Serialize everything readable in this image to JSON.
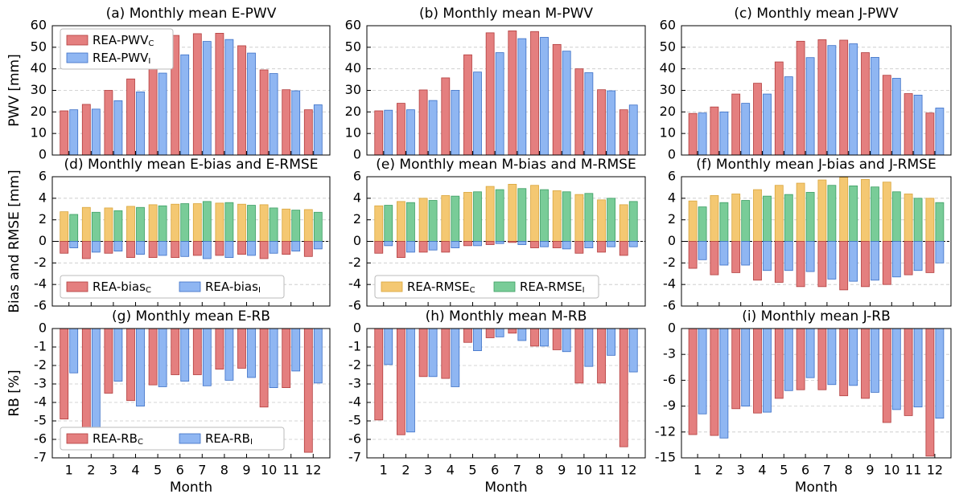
{
  "chart_data": [
    {
      "type": "bar",
      "title": "(a) Monthly mean E-PWV",
      "ylabel": "PWV [mm]",
      "ylim": [
        0,
        60
      ],
      "yticks": [
        0,
        10,
        20,
        30,
        40,
        50,
        60
      ],
      "grid": true,
      "legend": "upper left",
      "legend_ncol": 1,
      "series": [
        {
          "name": "REA-PWV",
          "name_sub": "C",
          "color": "#e47f7f",
          "edgecolor": "#b23c3c",
          "in_legend": true,
          "values": [
            20.5,
            23.5,
            30,
            35.3,
            45.3,
            55.5,
            56.3,
            56.5,
            50.7,
            39.5,
            30.3,
            21
          ]
        },
        {
          "name": "REA-PWV",
          "name_sub": "I",
          "color": "#8fb6f2",
          "edgecolor": "#3b6fc6",
          "in_legend": true,
          "values": [
            21,
            21.3,
            25.2,
            29.3,
            38,
            46.5,
            52.7,
            53.6,
            47.3,
            37.8,
            29.8,
            23.3
          ]
        }
      ]
    },
    {
      "type": "bar",
      "title": "(b) Monthly mean M-PWV",
      "ylim": [
        0,
        60
      ],
      "yticks": [
        0,
        10,
        20,
        30,
        40,
        50,
        60
      ],
      "grid": true,
      "series": [
        {
          "name": "REA-PWV",
          "name_sub": "C",
          "color": "#e47f7f",
          "edgecolor": "#b23c3c",
          "values": [
            20.5,
            24,
            30.2,
            35.8,
            46.5,
            56.7,
            57.6,
            57.3,
            51.3,
            40,
            30.3,
            21
          ]
        },
        {
          "name": "REA-PWV",
          "name_sub": "I",
          "color": "#8fb6f2",
          "edgecolor": "#3b6fc6",
          "values": [
            20.8,
            21,
            25.3,
            30,
            38.5,
            47.5,
            54,
            54.6,
            48.2,
            38.2,
            29.8,
            23.2
          ]
        }
      ]
    },
    {
      "type": "bar",
      "title": "(c) Monthly mean J-PWV",
      "ylim": [
        0,
        60
      ],
      "yticks": [
        0,
        10,
        20,
        30,
        40,
        50,
        60
      ],
      "grid": true,
      "series": [
        {
          "name": "REA-PWV",
          "name_sub": "C",
          "color": "#e47f7f",
          "edgecolor": "#b23c3c",
          "values": [
            19.3,
            22.3,
            28.3,
            33.3,
            43.2,
            52.8,
            53.5,
            53.3,
            47.5,
            37,
            28.5,
            19.5
          ]
        },
        {
          "name": "REA-PWV",
          "name_sub": "I",
          "color": "#8fb6f2",
          "edgecolor": "#3b6fc6",
          "values": [
            19.5,
            20,
            24,
            28.3,
            36.3,
            45.2,
            50.8,
            51.6,
            45.3,
            35.6,
            27.8,
            21.8
          ]
        }
      ]
    },
    {
      "type": "bar",
      "title": "(d) Monthly mean E-bias and E-RMSE",
      "ylabel": "Bias and RMSE [mm]",
      "ylim": [
        -6,
        6
      ],
      "yticks": [
        -6,
        -4,
        -2,
        0,
        2,
        4,
        6
      ],
      "grid": true,
      "zero_line": true,
      "legend": "lower left",
      "legend_ncol": 2,
      "series": [
        {
          "name": "REA-RMSE",
          "name_sub": "C",
          "color": "#f4c872",
          "edgecolor": "#d9a53c",
          "values": [
            2.75,
            3.15,
            3.1,
            3.25,
            3.4,
            3.45,
            3.5,
            3.55,
            3.45,
            3.4,
            3.0,
            2.95
          ]
        },
        {
          "name": "REA-RMSE",
          "name_sub": "I",
          "color": "#79cc98",
          "edgecolor": "#3c9e63",
          "values": [
            2.5,
            2.7,
            2.85,
            3.15,
            3.3,
            3.5,
            3.7,
            3.6,
            3.35,
            3.1,
            2.9,
            2.7
          ]
        },
        {
          "name": "REA-bias",
          "name_sub": "C",
          "color": "#e47f7f",
          "edgecolor": "#b23c3c",
          "in_legend": true,
          "values": [
            -1.1,
            -1.6,
            -1.1,
            -1.5,
            -1.5,
            -1.5,
            -1.3,
            -1.3,
            -1.2,
            -1.6,
            -1.2,
            -1.4
          ]
        },
        {
          "name": "REA-bias",
          "name_sub": "I",
          "color": "#8fb6f2",
          "edgecolor": "#3b6fc6",
          "in_legend": true,
          "values": [
            -0.6,
            -1.0,
            -0.9,
            -1.2,
            -1.3,
            -1.4,
            -1.6,
            -1.5,
            -1.3,
            -1.1,
            -0.9,
            -0.7
          ]
        }
      ]
    },
    {
      "type": "bar",
      "title": "(e) Monthly mean M-bias and M-RMSE",
      "ylim": [
        -6,
        6
      ],
      "yticks": [
        -6,
        -4,
        -2,
        0,
        2,
        4,
        6
      ],
      "grid": true,
      "zero_line": true,
      "legend": "lower left",
      "legend_ncol": 2,
      "series": [
        {
          "name": "REA-RMSE",
          "name_sub": "C",
          "color": "#f4c872",
          "edgecolor": "#d9a53c",
          "in_legend": true,
          "values": [
            3.3,
            3.7,
            4.0,
            4.25,
            4.55,
            5.1,
            5.3,
            5.2,
            4.7,
            4.35,
            3.85,
            3.4
          ]
        },
        {
          "name": "REA-RMSE",
          "name_sub": "I",
          "color": "#79cc98",
          "edgecolor": "#3c9e63",
          "in_legend": true,
          "values": [
            3.35,
            3.6,
            3.8,
            4.2,
            4.6,
            4.8,
            4.9,
            4.8,
            4.6,
            4.45,
            4.0,
            3.7
          ]
        },
        {
          "name": "REA-bias",
          "name_sub": "C",
          "color": "#e47f7f",
          "edgecolor": "#b23c3c",
          "values": [
            -1.1,
            -1.5,
            -1.0,
            -1.0,
            -0.4,
            -0.3,
            -0.1,
            -0.6,
            -0.6,
            -1.1,
            -1.0,
            -1.3
          ]
        },
        {
          "name": "REA-bias",
          "name_sub": "I",
          "color": "#8fb6f2",
          "edgecolor": "#3b6fc6",
          "values": [
            -0.4,
            -1.0,
            -0.8,
            -0.6,
            -0.4,
            -0.2,
            -0.3,
            -0.5,
            -0.7,
            -0.6,
            -0.5,
            -0.5
          ]
        }
      ]
    },
    {
      "type": "bar",
      "title": "(f) Monthly mean J-bias and J-RMSE",
      "ylim": [
        -6,
        6
      ],
      "yticks": [
        -6,
        -4,
        -2,
        0,
        2,
        4,
        6
      ],
      "grid": true,
      "zero_line": true,
      "series": [
        {
          "name": "REA-RMSE",
          "name_sub": "C",
          "color": "#f4c872",
          "edgecolor": "#d9a53c",
          "values": [
            3.75,
            4.25,
            4.4,
            4.8,
            5.2,
            5.4,
            5.7,
            5.95,
            5.75,
            5.5,
            4.4,
            4.0
          ]
        },
        {
          "name": "REA-RMSE",
          "name_sub": "I",
          "color": "#79cc98",
          "edgecolor": "#3c9e63",
          "values": [
            3.2,
            3.6,
            3.8,
            4.2,
            4.35,
            4.55,
            5.2,
            5.15,
            5.05,
            4.6,
            4.0,
            3.6
          ]
        },
        {
          "name": "REA-bias",
          "name_sub": "C",
          "color": "#e47f7f",
          "edgecolor": "#b23c3c",
          "values": [
            -2.5,
            -3.1,
            -2.9,
            -3.6,
            -3.8,
            -4.2,
            -4.2,
            -4.5,
            -4.2,
            -4.0,
            -3.1,
            -2.9
          ]
        },
        {
          "name": "REA-bias",
          "name_sub": "I",
          "color": "#8fb6f2",
          "edgecolor": "#3b6fc6",
          "values": [
            -1.7,
            -2.2,
            -2.2,
            -2.7,
            -2.7,
            -2.8,
            -3.5,
            -3.7,
            -3.6,
            -3.3,
            -2.7,
            -2.0
          ]
        }
      ]
    },
    {
      "type": "bar",
      "title": "(g) Monthly mean E-RB",
      "ylabel": "RB [%]",
      "xlabel": "Month",
      "categories": [
        1,
        2,
        3,
        4,
        5,
        6,
        7,
        8,
        9,
        10,
        11,
        12
      ],
      "ylim": [
        -7,
        0
      ],
      "yticks": [
        -7,
        -6,
        -5,
        -4,
        -3,
        -2,
        -1,
        0
      ],
      "grid": true,
      "legend": "lower left",
      "legend_ncol": 2,
      "series": [
        {
          "name": "REA-RB",
          "name_sub": "C",
          "color": "#e47f7f",
          "edgecolor": "#b23c3c",
          "in_legend": true,
          "values": [
            -4.9,
            -6.3,
            -3.5,
            -3.9,
            -3.05,
            -2.5,
            -2.5,
            -2.2,
            -2.15,
            -4.25,
            -3.2,
            -6.7
          ]
        },
        {
          "name": "REA-RB",
          "name_sub": "I",
          "color": "#8fb6f2",
          "edgecolor": "#3b6fc6",
          "in_legend": true,
          "values": [
            -2.4,
            -5.5,
            -2.85,
            -4.2,
            -3.15,
            -2.85,
            -3.1,
            -2.8,
            -2.65,
            -3.2,
            -2.3,
            -2.95
          ]
        }
      ]
    },
    {
      "type": "bar",
      "title": "(h) Monthly mean M-RB",
      "xlabel": "Month",
      "categories": [
        1,
        2,
        3,
        4,
        5,
        6,
        7,
        8,
        9,
        10,
        11,
        12
      ],
      "ylim": [
        -7,
        0
      ],
      "yticks": [
        -7,
        -6,
        -5,
        -4,
        -3,
        -2,
        -1,
        0
      ],
      "grid": true,
      "series": [
        {
          "name": "REA-RB",
          "name_sub": "C",
          "color": "#e47f7f",
          "edgecolor": "#b23c3c",
          "values": [
            -4.95,
            -5.75,
            -2.6,
            -2.7,
            -0.75,
            -0.5,
            -0.25,
            -0.95,
            -1.15,
            -2.95,
            -2.95,
            -6.4
          ]
        },
        {
          "name": "REA-RB",
          "name_sub": "I",
          "color": "#8fb6f2",
          "edgecolor": "#3b6fc6",
          "values": [
            -1.95,
            -5.6,
            -2.6,
            -3.15,
            -1.2,
            -0.45,
            -0.65,
            -0.95,
            -1.25,
            -2.05,
            -1.45,
            -2.35
          ]
        }
      ]
    },
    {
      "type": "bar",
      "title": "(i) Monthly mean J-RB",
      "xlabel": "Month",
      "categories": [
        1,
        2,
        3,
        4,
        5,
        6,
        7,
        8,
        9,
        10,
        11,
        12
      ],
      "ylim": [
        -15,
        0
      ],
      "yticks": [
        -15,
        -12,
        -9,
        -6,
        -3,
        0
      ],
      "grid": true,
      "series": [
        {
          "name": "REA-RB",
          "name_sub": "C",
          "color": "#e47f7f",
          "edgecolor": "#b23c3c",
          "values": [
            -12.3,
            -12.4,
            -9.3,
            -9.8,
            -8.1,
            -7.1,
            -7.1,
            -7.8,
            -8.1,
            -10.9,
            -10.1,
            -14.8
          ]
        },
        {
          "name": "REA-RB",
          "name_sub": "I",
          "color": "#8fb6f2",
          "edgecolor": "#3b6fc6",
          "values": [
            -9.9,
            -12.7,
            -9.0,
            -9.7,
            -7.2,
            -5.7,
            -6.5,
            -6.6,
            -7.4,
            -9.4,
            -9.1,
            -10.4
          ]
        }
      ]
    }
  ]
}
